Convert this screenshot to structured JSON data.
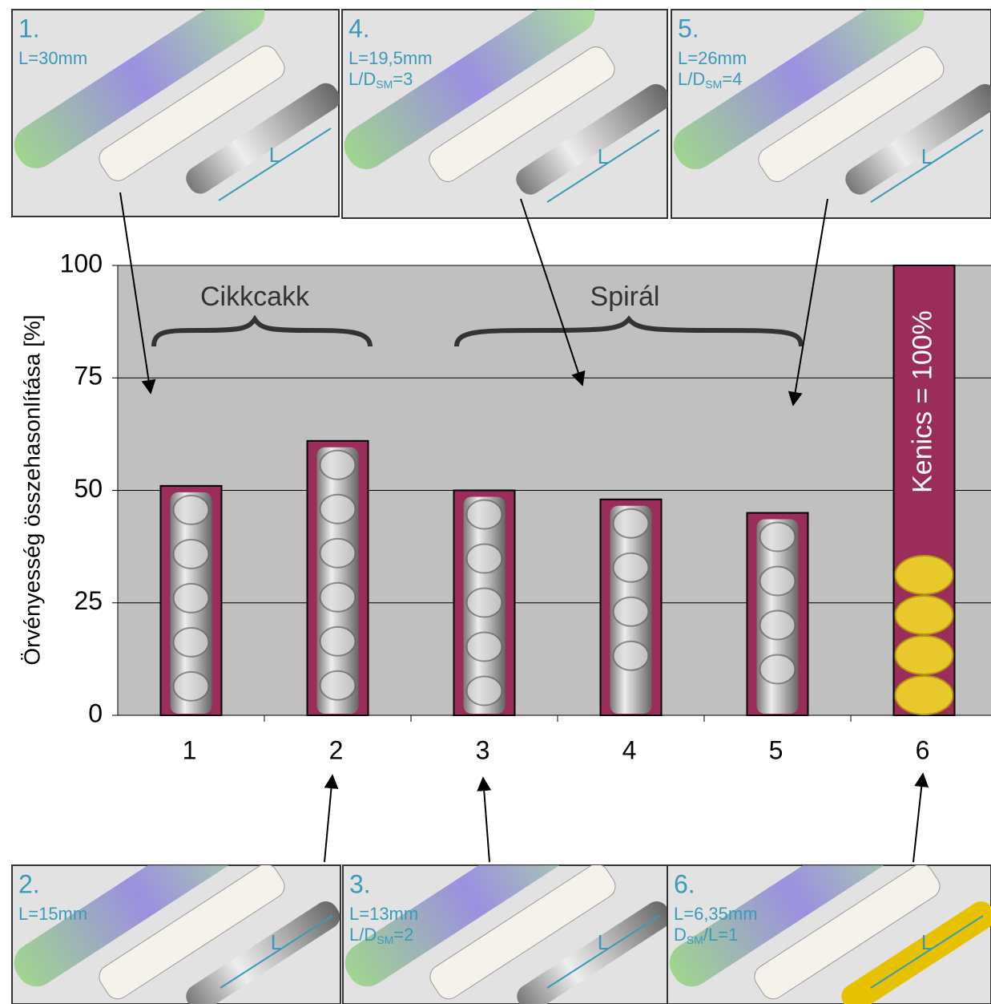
{
  "chart_data": {
    "type": "bar",
    "y_label": "Örvényesség összehasonlítása [%]",
    "categories": [
      "1",
      "2",
      "3",
      "4",
      "5",
      "6"
    ],
    "values": [
      51,
      61,
      50,
      48,
      45,
      100
    ],
    "value_labels": [
      null,
      null,
      null,
      null,
      null,
      "Kenics = 100%"
    ],
    "color": "#9b2d5a",
    "ylim": [
      0,
      100
    ],
    "yticks": [
      0,
      25,
      50,
      75,
      100
    ],
    "grid": true,
    "annotations": [
      "Cikkcakk",
      "Spirál"
    ]
  },
  "panels": [
    {
      "number": "1.",
      "lines": [
        [
          {
            "t": "L=30mm"
          }
        ]
      ],
      "dim": "L"
    },
    {
      "number": "4.",
      "lines": [
        [
          {
            "t": "L=19,5mm"
          }
        ],
        [
          {
            "t": "L/D"
          },
          {
            "sub": "SM"
          },
          {
            "t": "=3"
          }
        ]
      ],
      "dim": "L"
    },
    {
      "number": "5.",
      "lines": [
        [
          {
            "t": "L=26mm"
          }
        ],
        [
          {
            "t": "L/D"
          },
          {
            "sub": "SM"
          },
          {
            "t": "=4"
          }
        ]
      ],
      "dim": "L"
    },
    {
      "number": "2.",
      "lines": [
        [
          {
            "t": "L=15mm"
          }
        ]
      ],
      "dim": "L"
    },
    {
      "number": "3.",
      "lines": [
        [
          {
            "t": "L=13mm"
          }
        ],
        [
          {
            "t": "L/D"
          },
          {
            "sub": "SM"
          },
          {
            "t": "=2"
          }
        ]
      ],
      "dim": "L"
    },
    {
      "number": "6.",
      "lines": [
        [
          {
            "t": "L=6,35mm"
          }
        ],
        [
          {
            "t": "D"
          },
          {
            "sub": "SM"
          },
          {
            "t": "/L=1"
          }
        ]
      ],
      "dim": "L"
    }
  ]
}
